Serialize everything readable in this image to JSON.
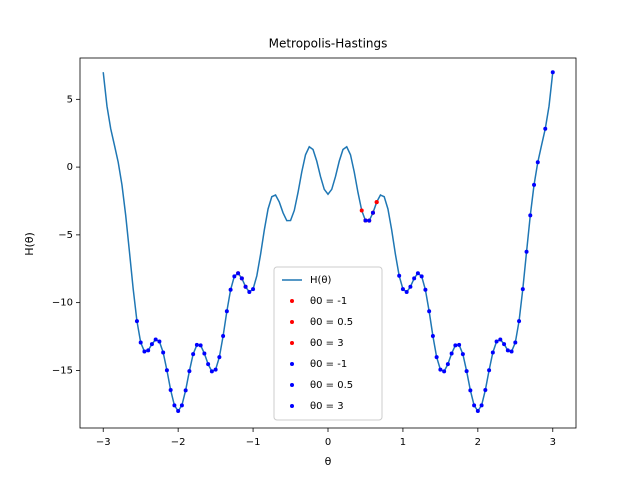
{
  "chart_data": {
    "type": "line",
    "title": "Metropolis-Hastings",
    "x_label": "θ",
    "y_label": "H(θ)",
    "xlim": [
      -3.31,
      3.31
    ],
    "ylim": [
      -19.25,
      8.05
    ],
    "xticks": [
      {
        "value": -3,
        "label": "−3"
      },
      {
        "value": -2,
        "label": "−2"
      },
      {
        "value": -1,
        "label": "−1"
      },
      0,
      1,
      2,
      3
    ],
    "yticks": [
      {
        "value": -15,
        "label": "−15"
      },
      {
        "value": -10,
        "label": "−10"
      },
      {
        "value": -5,
        "label": "−5"
      },
      0,
      5
    ],
    "grid": false,
    "legend": "lower center",
    "series": [
      {
        "name": "H(θ)",
        "type": "line",
        "color": "#1f77b4",
        "x": [
          -3,
          -2.95,
          -2.9,
          -2.85,
          -2.8,
          -2.75,
          -2.7,
          -2.65,
          -2.6,
          -2.55,
          -2.5,
          -2.45,
          -2.4,
          -2.35,
          -2.3,
          -2.25,
          -2.2,
          -2.15,
          -2.1,
          -2.05,
          -2,
          -1.95,
          -1.9,
          -1.85,
          -1.8,
          -1.75,
          -1.7,
          -1.65,
          -1.6,
          -1.55,
          -1.5,
          -1.45,
          -1.4,
          -1.35,
          -1.3,
          -1.25,
          -1.2,
          -1.15,
          -1.1,
          -1.05,
          -1,
          -0.95,
          -0.9,
          -0.85,
          -0.8,
          -0.75,
          -0.7,
          -0.65,
          -0.6,
          -0.55,
          -0.5,
          -0.45,
          -0.4,
          -0.35,
          -0.3,
          -0.25,
          -0.2,
          -0.15,
          -0.1,
          -0.05,
          0,
          0.05,
          0.1,
          0.15,
          0.2,
          0.25,
          0.3,
          0.35,
          0.4,
          0.45,
          0.5,
          0.55,
          0.6,
          0.65,
          0.7,
          0.75,
          0.8,
          0.85,
          0.9,
          0.95,
          1,
          1.05,
          1.1,
          1.15,
          1.2,
          1.25,
          1.3,
          1.35,
          1.4,
          1.45,
          1.5,
          1.55,
          1.6,
          1.65,
          1.7,
          1.75,
          1.8,
          1.85,
          1.9,
          1.95,
          2,
          2.05,
          2.1,
          2.15,
          2.2,
          2.25,
          2.3,
          2.35,
          2.4,
          2.45,
          2.5,
          2.55,
          2.6,
          2.65,
          2.7,
          2.75,
          2.8,
          2.85,
          2.9,
          2.95,
          3
        ],
        "values": [
          7,
          4.5,
          2.83,
          1.61,
          0.36,
          -1.31,
          -3.56,
          -6.25,
          -9,
          -11.36,
          -12.94,
          -13.61,
          -13.52,
          -13.06,
          -12.72,
          -12.87,
          -13.68,
          -14.99,
          -16.45,
          -17.58,
          -18,
          -17.58,
          -16.47,
          -15.05,
          -13.8,
          -13.12,
          -13.15,
          -13.75,
          -14.54,
          -15.07,
          -14.94,
          -14.02,
          -12.46,
          -10.64,
          -9.05,
          -8.06,
          -7.83,
          -8.21,
          -8.83,
          -9.22,
          -9,
          -8.02,
          -6.44,
          -4.64,
          -3.09,
          -2.18,
          -2.06,
          -2.58,
          -3.37,
          -3.95,
          -3.94,
          -3.2,
          -1.87,
          -0.35,
          0.91,
          1.5,
          1.3,
          0.44,
          -0.7,
          -1.64,
          -2,
          -1.64,
          -0.7,
          0.44,
          1.3,
          1.5,
          0.91,
          -0.35,
          -1.87,
          -3.2,
          -3.94,
          -3.95,
          -3.37,
          -2.58,
          -2.06,
          -2.18,
          -3.09,
          -4.64,
          -6.44,
          -8.02,
          -9,
          -9.22,
          -8.83,
          -8.21,
          -7.83,
          -8.06,
          -9.05,
          -10.64,
          -12.46,
          -14.02,
          -14.94,
          -15.07,
          -14.54,
          -13.75,
          -13.15,
          -13.12,
          -13.8,
          -15.05,
          -16.47,
          -17.58,
          -18,
          -17.58,
          -16.45,
          -14.99,
          -13.68,
          -12.87,
          -12.72,
          -13.06,
          -13.52,
          -13.61,
          -12.94,
          -11.36,
          -9,
          -6.25,
          -3.56,
          -1.31,
          0.36,
          1.61,
          2.83,
          4.5,
          7
        ]
      },
      {
        "name": "θ0 = -1",
        "type": "scatter",
        "color": "red",
        "x": [
          -1.2,
          -1.15,
          -1.1
        ],
        "values": [
          -7.83,
          -8.21,
          -8.83
        ]
      },
      {
        "name": "θ0 = 0.5",
        "type": "scatter",
        "color": "red",
        "x": [
          0.45,
          0.5,
          0.55,
          0.6,
          0.65
        ],
        "values": [
          -3.2,
          -3.94,
          -3.95,
          -3.37,
          -2.58
        ]
      },
      {
        "name": "θ0 = 3",
        "type": "scatter",
        "color": "red",
        "x": [
          0.5,
          0.6,
          0.65
        ],
        "values": [
          -3.94,
          -3.37,
          -2.58
        ]
      },
      {
        "name": "θ0 = -1",
        "type": "scatter",
        "color": "blue",
        "x": [
          -2.55,
          -2.5,
          -2.45,
          -2.4,
          -2.35,
          -2.3,
          -2.25,
          -2.2,
          -2.15,
          -2.1,
          -2.05,
          -2,
          -1.95,
          -1.9,
          -1.85,
          -1.8,
          -1.75,
          -1.7,
          -1.65,
          -1.6,
          -1.55,
          -1.5,
          -1.45,
          -1.4,
          -1.35,
          -1.3,
          -1.25,
          -1.2,
          -1.15,
          -1.1,
          -1.05,
          -1
        ],
        "values": [
          -11.36,
          -12.94,
          -13.61,
          -13.52,
          -13.06,
          -12.72,
          -12.87,
          -13.68,
          -14.99,
          -16.45,
          -17.58,
          -18,
          -17.58,
          -16.47,
          -15.05,
          -13.8,
          -13.12,
          -13.15,
          -13.75,
          -14.54,
          -15.07,
          -14.94,
          -14.02,
          -12.46,
          -10.64,
          -9.05,
          -8.06,
          -7.83,
          -8.21,
          -8.83,
          -9.22,
          -9
        ]
      },
      {
        "name": "θ0 = 0.5",
        "type": "scatter",
        "color": "blue",
        "x": [
          0.5,
          0.55,
          0.6,
          0.95,
          1,
          1.05,
          1.1,
          1.15,
          1.2,
          1.25,
          1.3,
          1.35,
          1.4,
          1.45,
          1.5,
          1.55,
          1.6,
          1.65,
          1.7,
          1.75,
          1.8,
          1.85,
          1.9,
          1.95,
          2,
          2.05,
          2.1,
          2.15,
          2.2
        ],
        "values": [
          -3.94,
          -3.95,
          -3.37,
          -8.02,
          -9,
          -9.22,
          -8.83,
          -8.21,
          -7.83,
          -8.06,
          -9.05,
          -10.64,
          -12.46,
          -14.02,
          -14.94,
          -15.07,
          -14.54,
          -13.75,
          -13.15,
          -13.12,
          -13.8,
          -15.05,
          -16.47,
          -17.58,
          -18,
          -17.58,
          -16.45,
          -14.99,
          -13.68
        ]
      },
      {
        "name": "θ0 = 3",
        "type": "scatter",
        "color": "blue",
        "x": [
          2.25,
          2.3,
          2.35,
          2.4,
          2.45,
          2.5,
          2.55,
          2.6,
          2.65,
          2.7,
          2.75,
          2.8,
          2.9,
          3
        ],
        "values": [
          -12.87,
          -12.72,
          -13.06,
          -13.52,
          -13.61,
          -12.94,
          -11.36,
          -9,
          -6.25,
          -3.56,
          -1.31,
          0.36,
          2.83,
          7
        ]
      }
    ]
  }
}
